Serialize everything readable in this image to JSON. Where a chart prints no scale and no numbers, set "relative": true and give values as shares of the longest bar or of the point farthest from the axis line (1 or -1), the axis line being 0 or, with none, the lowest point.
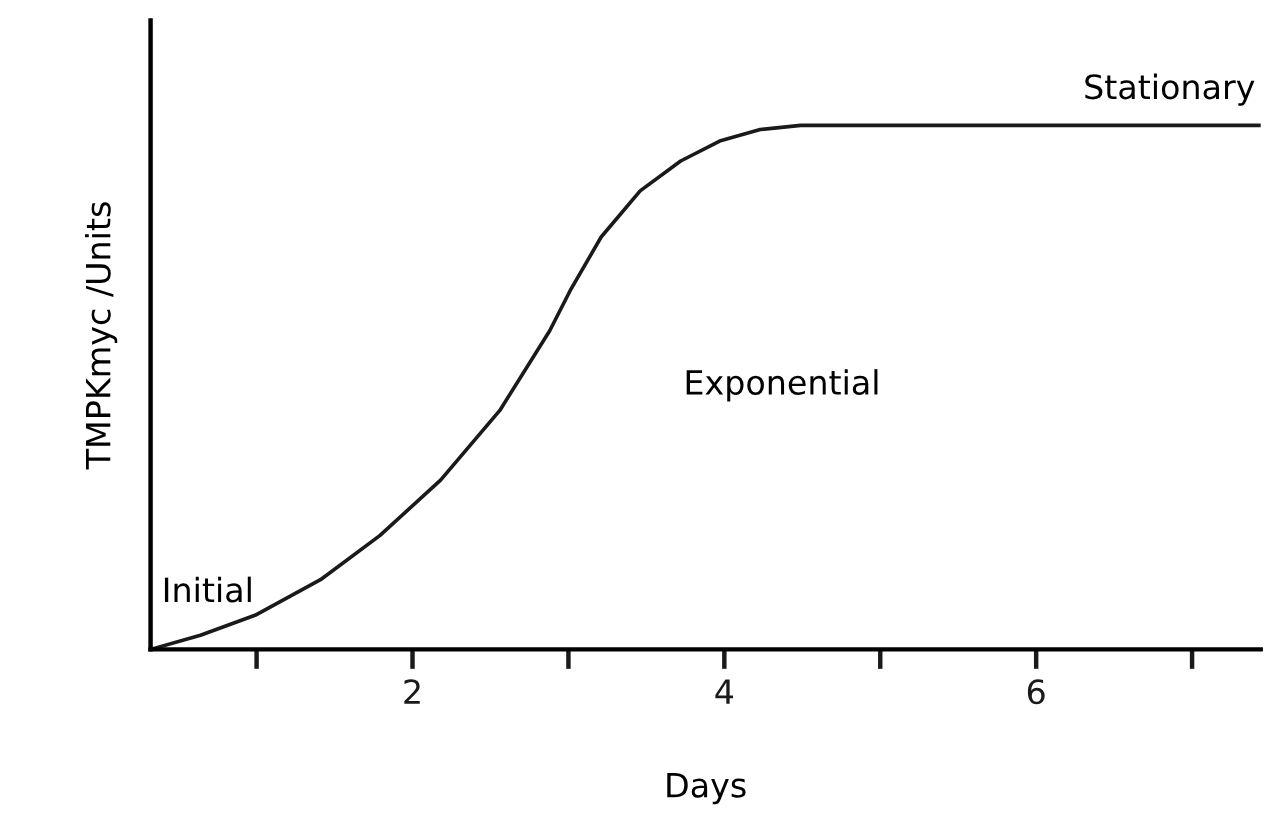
{
  "chart_data": {
    "type": "line",
    "relative": true,
    "xlabel": "Days",
    "ylabel": "TMPKmyc /Units",
    "x": [
      0.32,
      0.64,
      0.99,
      1.41,
      1.79,
      2.18,
      2.56,
      2.88,
      3.01,
      3.21,
      3.46,
      3.72,
      3.97,
      4.23,
      4.49,
      7.44
    ],
    "series": [
      {
        "color": "#1a1a1a",
        "values": [
          0,
          0.027,
          0.065,
          0.133,
          0.217,
          0.323,
          0.456,
          0.608,
          0.684,
          0.787,
          0.875,
          0.932,
          0.97,
          0.992,
          1,
          1
        ]
      }
    ],
    "xlim": [
      0.32,
      7.44
    ],
    "xticks": [
      {
        "value": 1,
        "label": null
      },
      2,
      {
        "value": 3,
        "label": null
      },
      4,
      {
        "value": 5,
        "label": null
      },
      6,
      {
        "value": 7,
        "label": null
      }
    ],
    "annotations": [
      "Initial",
      "Exponential",
      "Stationary"
    ],
    "grid": false,
    "legend": false,
    "marker": "none",
    "line_style": "solid"
  }
}
